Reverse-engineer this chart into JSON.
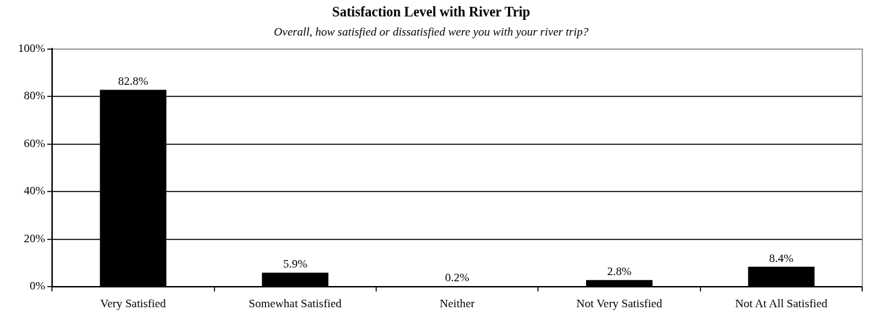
{
  "chart_data": {
    "type": "bar",
    "title": "Satisfaction Level with River Trip",
    "subtitle": "Overall, how satisfied or dissatisfied were you with your river trip?",
    "categories": [
      "Very Satisfied",
      "Somewhat Satisfied",
      "Neither",
      "Not Very Satisfied",
      "Not At All Satisfied"
    ],
    "values": [
      82.8,
      5.9,
      0.2,
      2.8,
      8.4
    ],
    "value_labels": [
      "82.8%",
      "5.9%",
      "0.2%",
      "2.8%",
      "8.4%"
    ],
    "color": "#000000",
    "ylim": [
      0,
      100
    ],
    "yticks": [
      {
        "value": 0,
        "label": "0%"
      },
      {
        "value": 20,
        "label": "20%"
      },
      {
        "value": 40,
        "label": "40%"
      },
      {
        "value": 60,
        "label": "60%"
      },
      {
        "value": 80,
        "label": "80%"
      },
      {
        "value": 100,
        "label": "100%"
      }
    ],
    "grid": "y"
  }
}
